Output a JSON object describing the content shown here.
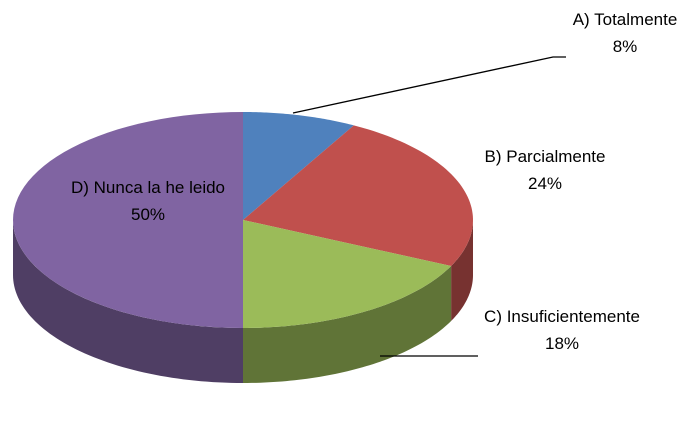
{
  "chart_data": {
    "type": "pie",
    "categories": [
      "A) Totalmente",
      "B) Parcialmente",
      "C) Insuficientemente",
      "D) Nunca la he leido"
    ],
    "values": [
      8,
      24,
      18,
      50
    ],
    "value_labels": [
      "8%",
      "24%",
      "18%",
      "50%"
    ],
    "colors": [
      "#4f81bd",
      "#c0504d",
      "#9bbb59",
      "#8064a2"
    ]
  }
}
